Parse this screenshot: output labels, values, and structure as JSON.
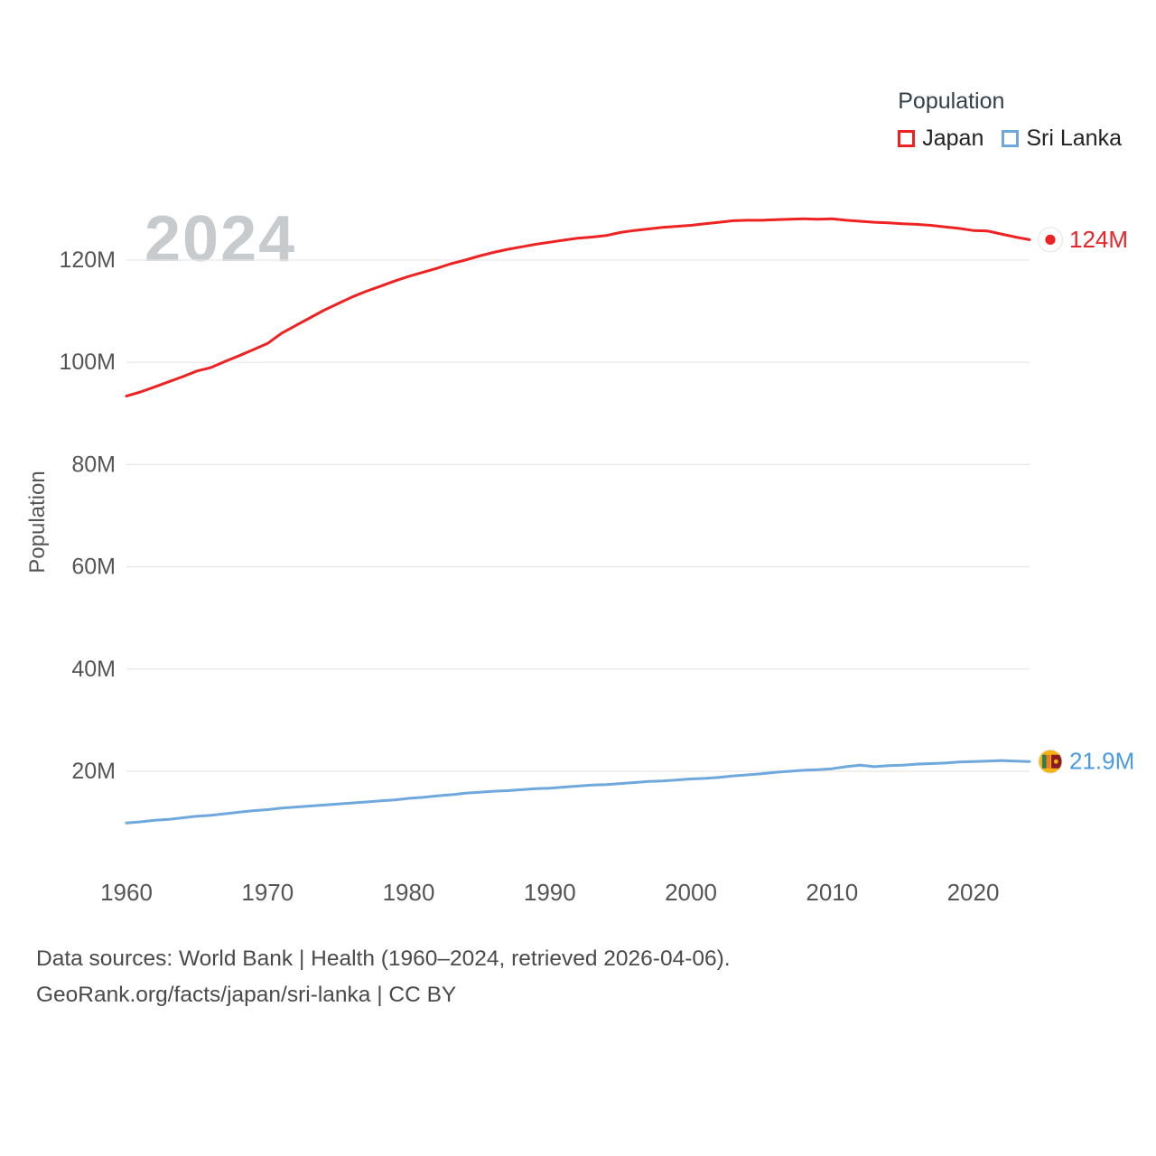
{
  "watermark": "2024",
  "ylabel": "Population",
  "legend": {
    "title": "Population",
    "items": [
      {
        "label": "Japan",
        "color": "#ee2222"
      },
      {
        "label": "Sri Lanka",
        "color": "#6fa8dc"
      }
    ]
  },
  "end_labels": [
    {
      "series": "Japan",
      "text": "124M",
      "color": "#e8252a"
    },
    {
      "series": "Sri Lanka",
      "text": "21.9M",
      "color": "#4a9be0"
    }
  ],
  "footer": {
    "line1": "Data sources: World Bank | Health (1960–2024, retrieved 2026-04-06).",
    "line2": "GeoRank.org/facts/japan/sri-lanka | CC BY"
  },
  "colors": {
    "grid": "#e6e6e6",
    "axis_text": "#555555",
    "japan": "#ee2222",
    "sri_lanka": "#6fa8dc"
  },
  "chart_data": {
    "type": "line",
    "title": "Population",
    "xlabel": "",
    "ylabel": "Population",
    "x": [
      1960,
      1961,
      1962,
      1963,
      1964,
      1965,
      1966,
      1967,
      1968,
      1969,
      1970,
      1971,
      1972,
      1973,
      1974,
      1975,
      1976,
      1977,
      1978,
      1979,
      1980,
      1981,
      1982,
      1983,
      1984,
      1985,
      1986,
      1987,
      1988,
      1989,
      1990,
      1991,
      1992,
      1993,
      1994,
      1995,
      1996,
      1997,
      1998,
      1999,
      2000,
      2001,
      2002,
      2003,
      2004,
      2005,
      2006,
      2007,
      2008,
      2009,
      2010,
      2011,
      2012,
      2013,
      2014,
      2015,
      2016,
      2017,
      2018,
      2019,
      2020,
      2021,
      2022,
      2023,
      2024
    ],
    "series": [
      {
        "name": "Japan",
        "color": "#ee2222",
        "unit": "millions",
        "values": [
          93.4,
          94.2,
          95.2,
          96.2,
          97.2,
          98.3,
          99.0,
          100.2,
          101.3,
          102.5,
          103.7,
          105.7,
          107.2,
          108.7,
          110.2,
          111.5,
          112.8,
          113.9,
          114.9,
          115.9,
          116.8,
          117.6,
          118.4,
          119.3,
          120.0,
          120.8,
          121.5,
          122.1,
          122.6,
          123.1,
          123.5,
          123.9,
          124.3,
          124.5,
          124.8,
          125.4,
          125.8,
          126.1,
          126.4,
          126.6,
          126.8,
          127.1,
          127.4,
          127.7,
          127.8,
          127.8,
          127.9,
          128.0,
          128.1,
          128.0,
          128.1,
          127.8,
          127.6,
          127.4,
          127.3,
          127.1,
          127.0,
          126.8,
          126.5,
          126.2,
          125.8,
          125.7,
          125.1,
          124.5,
          124.0
        ]
      },
      {
        "name": "Sri Lanka",
        "color": "#6fa8dc",
        "unit": "millions",
        "values": [
          9.9,
          10.1,
          10.4,
          10.6,
          10.9,
          11.2,
          11.4,
          11.7,
          12.0,
          12.3,
          12.5,
          12.8,
          13.0,
          13.2,
          13.4,
          13.6,
          13.8,
          14.0,
          14.2,
          14.4,
          14.7,
          14.9,
          15.2,
          15.4,
          15.7,
          15.9,
          16.1,
          16.2,
          16.4,
          16.6,
          16.7,
          16.9,
          17.1,
          17.3,
          17.4,
          17.6,
          17.8,
          18.0,
          18.1,
          18.3,
          18.5,
          18.6,
          18.8,
          19.1,
          19.3,
          19.5,
          19.8,
          20.0,
          20.2,
          20.3,
          20.5,
          20.9,
          21.2,
          20.9,
          21.1,
          21.2,
          21.4,
          21.5,
          21.6,
          21.8,
          21.9,
          22.0,
          22.1,
          22.0,
          21.9
        ]
      }
    ],
    "yticks": [
      20,
      40,
      60,
      80,
      100,
      120
    ],
    "ytick_labels": [
      "20M",
      "40M",
      "60M",
      "80M",
      "100M",
      "120M"
    ],
    "xticks": [
      1960,
      1970,
      1980,
      1990,
      2000,
      2010,
      2020
    ],
    "xlim": [
      1960,
      2024
    ],
    "ylim": [
      0,
      130
    ],
    "grid": "horizontal",
    "legend_position": "top-right"
  }
}
